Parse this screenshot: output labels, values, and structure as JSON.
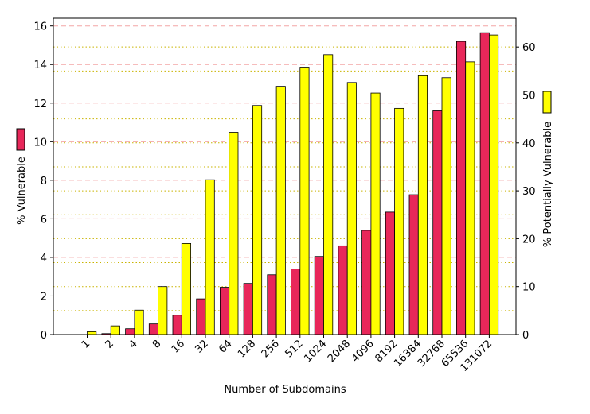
{
  "chart_data": {
    "type": "bar",
    "xlabel": "Number of Subdomains",
    "categories": [
      "1",
      "2",
      "4",
      "8",
      "16",
      "32",
      "64",
      "128",
      "256",
      "512",
      "1024",
      "2048",
      "4096",
      "8192",
      "16384",
      "32768",
      "65536",
      "131072"
    ],
    "series": [
      {
        "name": "% Vulnerable",
        "axis": "left",
        "color": "#e8275a",
        "values": [
          0.0,
          0.05,
          0.3,
          0.55,
          1.0,
          1.85,
          2.45,
          2.65,
          3.1,
          3.4,
          4.05,
          4.6,
          5.4,
          6.35,
          7.25,
          11.6,
          15.2,
          15.65
        ]
      },
      {
        "name": "% Potentially Vulnerable",
        "axis": "right",
        "color": "#ffff00",
        "values": [
          0.6,
          1.8,
          5.1,
          10.0,
          19.0,
          32.3,
          42.2,
          47.8,
          51.8,
          55.8,
          58.4,
          52.6,
          50.4,
          47.2,
          54.0,
          53.6,
          56.9,
          62.5
        ]
      }
    ],
    "left_axis": {
      "label": "% Vulnerable",
      "ylim": [
        0,
        16.4
      ],
      "ticks": [
        "0",
        "2",
        "4",
        "6",
        "8",
        "10",
        "12",
        "14",
        "16"
      ],
      "gridline_style": "dashed",
      "gridline_color": "#f4a6a6"
    },
    "right_axis": {
      "label": "% Potentially Vulnerable",
      "ylim": [
        0,
        66
      ],
      "ticks": [
        "0",
        "10",
        "20",
        "30",
        "40",
        "50",
        "60"
      ],
      "gridline_style": "dotted",
      "gridline_color": "#c9b400"
    },
    "grid": true,
    "legend": "axis labels with color swatches"
  }
}
